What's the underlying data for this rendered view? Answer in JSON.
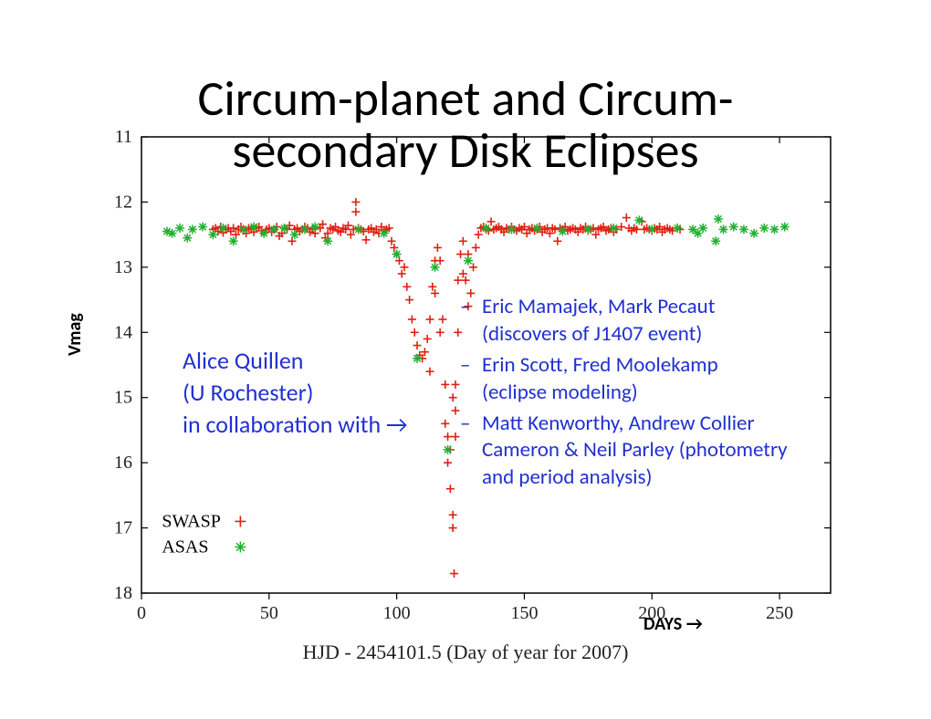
{
  "title_line1": "Circum-planet and Circum-",
  "title_line2": "secondary Disk Eclipses",
  "ylabel": "Vmag",
  "days_label": "DAYS  →",
  "xlabel": "HJD - 2454101.5 (Day of year for 2007)",
  "author": {
    "name": "Alice Quillen",
    "affil": "(U Rochester)",
    "collab_intro": " in collaboration with →"
  },
  "collaborators": [
    {
      "line1": "Eric Mamajek, Mark Pecaut",
      "line2": "(discovers of J1407 event)"
    },
    {
      "line1": "Erin Scott, Fred Moolekamp",
      "line2": "(eclipse modeling)"
    },
    {
      "line1": "Matt Kenworthy,  Andrew Collier Cameron & Neil Parley (photometry and period analysis)",
      "line2": ""
    }
  ],
  "chart": {
    "type": "scatter",
    "background_color": "#ffffff",
    "axis_color": "#000000",
    "xlim": [
      0,
      270
    ],
    "ylim": [
      18,
      11
    ],
    "xticks": [
      0,
      50,
      100,
      150,
      200,
      250
    ],
    "yticks": [
      11,
      12,
      13,
      14,
      15,
      16,
      17,
      18
    ],
    "tick_fontsize": 20,
    "tick_fontfamily": "Times New Roman, serif",
    "tick_color": "#222222",
    "legend": {
      "x": 8,
      "y_top": 16.9,
      "items": [
        {
          "label": "SWASP",
          "marker": "plus",
          "color": "#e02010"
        },
        {
          "label": "ASAS",
          "marker": "star",
          "color": "#20b030"
        }
      ],
      "font": "Times New Roman, serif",
      "fontsize": 20
    },
    "series": [
      {
        "name": "SWASP",
        "marker": "plus",
        "color": "#e02010",
        "size": 9,
        "points": [
          [
            28,
            12.42
          ],
          [
            29,
            12.4
          ],
          [
            30,
            12.45
          ],
          [
            31,
            12.38
          ],
          [
            32,
            12.47
          ],
          [
            33,
            12.42
          ],
          [
            34,
            12.4
          ],
          [
            35,
            12.45
          ],
          [
            36,
            12.4
          ],
          [
            37,
            12.5
          ],
          [
            38,
            12.42
          ],
          [
            39,
            12.38
          ],
          [
            40,
            12.44
          ],
          [
            41,
            12.48
          ],
          [
            42,
            12.4
          ],
          [
            43,
            12.42
          ],
          [
            44,
            12.46
          ],
          [
            45,
            12.4
          ],
          [
            46,
            12.38
          ],
          [
            47,
            12.44
          ],
          [
            48,
            12.48
          ],
          [
            49,
            12.42
          ],
          [
            50,
            12.4
          ],
          [
            51,
            12.46
          ],
          [
            52,
            12.42
          ],
          [
            53,
            12.38
          ],
          [
            54,
            12.52
          ],
          [
            55,
            12.48
          ],
          [
            56,
            12.4
          ],
          [
            57,
            12.42
          ],
          [
            58,
            12.36
          ],
          [
            59,
            12.6
          ],
          [
            60,
            12.42
          ],
          [
            61,
            12.4
          ],
          [
            62,
            12.45
          ],
          [
            63,
            12.42
          ],
          [
            64,
            12.38
          ],
          [
            65,
            12.4
          ],
          [
            66,
            12.46
          ],
          [
            67,
            12.42
          ],
          [
            68,
            12.48
          ],
          [
            70,
            12.4
          ],
          [
            71,
            12.34
          ],
          [
            72,
            12.55
          ],
          [
            73,
            12.48
          ],
          [
            74,
            12.4
          ],
          [
            75,
            12.42
          ],
          [
            76,
            12.38
          ],
          [
            77,
            12.44
          ],
          [
            78,
            12.46
          ],
          [
            79,
            12.4
          ],
          [
            80,
            12.42
          ],
          [
            81,
            12.36
          ],
          [
            82,
            12.5
          ],
          [
            83,
            12.42
          ],
          [
            84,
            12.0
          ],
          [
            84,
            12.15
          ],
          [
            85,
            12.4
          ],
          [
            86,
            12.42
          ],
          [
            87,
            12.45
          ],
          [
            88,
            12.58
          ],
          [
            89,
            12.42
          ],
          [
            90,
            12.4
          ],
          [
            91,
            12.46
          ],
          [
            92,
            12.42
          ],
          [
            93,
            12.48
          ],
          [
            94,
            12.38
          ],
          [
            95,
            12.44
          ],
          [
            96,
            12.42
          ],
          [
            97,
            12.4
          ],
          [
            98,
            12.6
          ],
          [
            99,
            12.7
          ],
          [
            100,
            12.8
          ],
          [
            101,
            12.9
          ],
          [
            102,
            13.1
          ],
          [
            103,
            13.0
          ],
          [
            104,
            13.3
          ],
          [
            105,
            13.5
          ],
          [
            106,
            13.8
          ],
          [
            107,
            14.0
          ],
          [
            108,
            14.2
          ],
          [
            109,
            14.35
          ],
          [
            110,
            14.4
          ],
          [
            111,
            14.3
          ],
          [
            112,
            14.1
          ],
          [
            113,
            13.8
          ],
          [
            113,
            14.6
          ],
          [
            114,
            13.3
          ],
          [
            115,
            12.9
          ],
          [
            115,
            13.4
          ],
          [
            116,
            12.7
          ],
          [
            117,
            12.9
          ],
          [
            117,
            14.0
          ],
          [
            118,
            13.8
          ],
          [
            119,
            14.8
          ],
          [
            119,
            15.4
          ],
          [
            120,
            15.6
          ],
          [
            120,
            16.0
          ],
          [
            121,
            16.4
          ],
          [
            121,
            15.8
          ],
          [
            122,
            16.8
          ],
          [
            122,
            15.0
          ],
          [
            122,
            17.0
          ],
          [
            123,
            15.2
          ],
          [
            123,
            14.8
          ],
          [
            123,
            15.6
          ],
          [
            124,
            14.0
          ],
          [
            124,
            13.2
          ],
          [
            122.5,
            17.7
          ],
          [
            125,
            12.8
          ],
          [
            126,
            12.6
          ],
          [
            126,
            13.1
          ],
          [
            127,
            13.2
          ],
          [
            128,
            13.6
          ],
          [
            128,
            12.8
          ],
          [
            129,
            13.4
          ],
          [
            130,
            13.0
          ],
          [
            131,
            12.7
          ],
          [
            132,
            12.5
          ],
          [
            133,
            12.4
          ],
          [
            134,
            12.38
          ],
          [
            135,
            12.42
          ],
          [
            136,
            12.44
          ],
          [
            137,
            12.3
          ],
          [
            138,
            12.42
          ],
          [
            139,
            12.4
          ],
          [
            140,
            12.38
          ],
          [
            141,
            12.42
          ],
          [
            142,
            12.46
          ],
          [
            143,
            12.4
          ],
          [
            144,
            12.42
          ],
          [
            145,
            12.38
          ],
          [
            146,
            12.42
          ],
          [
            147,
            12.44
          ],
          [
            148,
            12.4
          ],
          [
            149,
            12.42
          ],
          [
            150,
            12.38
          ],
          [
            151,
            12.48
          ],
          [
            152,
            12.42
          ],
          [
            153,
            12.4
          ],
          [
            154,
            12.44
          ],
          [
            155,
            12.42
          ],
          [
            156,
            12.38
          ],
          [
            157,
            12.46
          ],
          [
            158,
            12.42
          ],
          [
            159,
            12.4
          ],
          [
            160,
            12.48
          ],
          [
            161,
            12.4
          ],
          [
            162,
            12.42
          ],
          [
            163,
            12.6
          ],
          [
            164,
            12.4
          ],
          [
            165,
            12.42
          ],
          [
            166,
            12.38
          ],
          [
            167,
            12.44
          ],
          [
            168,
            12.42
          ],
          [
            169,
            12.4
          ],
          [
            170,
            12.42
          ],
          [
            171,
            12.46
          ],
          [
            172,
            12.4
          ],
          [
            173,
            12.42
          ],
          [
            174,
            12.38
          ],
          [
            175,
            12.44
          ],
          [
            176,
            12.42
          ],
          [
            177,
            12.4
          ],
          [
            178,
            12.5
          ],
          [
            179,
            12.42
          ],
          [
            180,
            12.4
          ],
          [
            181,
            12.38
          ],
          [
            182,
            12.44
          ],
          [
            183,
            12.42
          ],
          [
            184,
            12.4
          ],
          [
            185,
            12.46
          ],
          [
            186,
            12.42
          ],
          [
            188,
            12.38
          ],
          [
            190,
            12.24
          ],
          [
            191,
            12.4
          ],
          [
            192,
            12.44
          ],
          [
            193,
            12.4
          ],
          [
            194,
            12.42
          ],
          [
            196,
            12.3
          ],
          [
            197,
            12.42
          ],
          [
            198,
            12.4
          ],
          [
            199,
            12.42
          ],
          [
            200,
            12.44
          ],
          [
            201,
            12.4
          ],
          [
            202,
            12.42
          ],
          [
            203,
            12.38
          ],
          [
            204,
            12.46
          ],
          [
            205,
            12.42
          ],
          [
            206,
            12.4
          ],
          [
            207,
            12.42
          ],
          [
            208,
            12.44
          ],
          [
            210,
            12.4
          ],
          [
            211,
            12.42
          ]
        ]
      },
      {
        "name": "ASAS",
        "marker": "star",
        "color": "#20b030",
        "size": 10,
        "points": [
          [
            10,
            12.45
          ],
          [
            12,
            12.48
          ],
          [
            15,
            12.4
          ],
          [
            18,
            12.55
          ],
          [
            20,
            12.42
          ],
          [
            24,
            12.38
          ],
          [
            28,
            12.5
          ],
          [
            32,
            12.4
          ],
          [
            36,
            12.6
          ],
          [
            40,
            12.42
          ],
          [
            44,
            12.38
          ],
          [
            48,
            12.48
          ],
          [
            52,
            12.42
          ],
          [
            56,
            12.4
          ],
          [
            60,
            12.5
          ],
          [
            64,
            12.42
          ],
          [
            68,
            12.38
          ],
          [
            73,
            12.6
          ],
          [
            85,
            12.42
          ],
          [
            95,
            12.48
          ],
          [
            100,
            12.8
          ],
          [
            108,
            14.4
          ],
          [
            115,
            13.0
          ],
          [
            120,
            15.8
          ],
          [
            128,
            12.9
          ],
          [
            135,
            12.4
          ],
          [
            145,
            12.42
          ],
          [
            155,
            12.4
          ],
          [
            165,
            12.45
          ],
          [
            175,
            12.42
          ],
          [
            185,
            12.4
          ],
          [
            195,
            12.28
          ],
          [
            200,
            12.42
          ],
          [
            210,
            12.4
          ],
          [
            216,
            12.42
          ],
          [
            218,
            12.48
          ],
          [
            220,
            12.4
          ],
          [
            225,
            12.6
          ],
          [
            226,
            12.26
          ],
          [
            228,
            12.42
          ],
          [
            232,
            12.38
          ],
          [
            236,
            12.42
          ],
          [
            240,
            12.48
          ],
          [
            244,
            12.4
          ],
          [
            248,
            12.42
          ],
          [
            252,
            12.38
          ]
        ]
      }
    ]
  }
}
